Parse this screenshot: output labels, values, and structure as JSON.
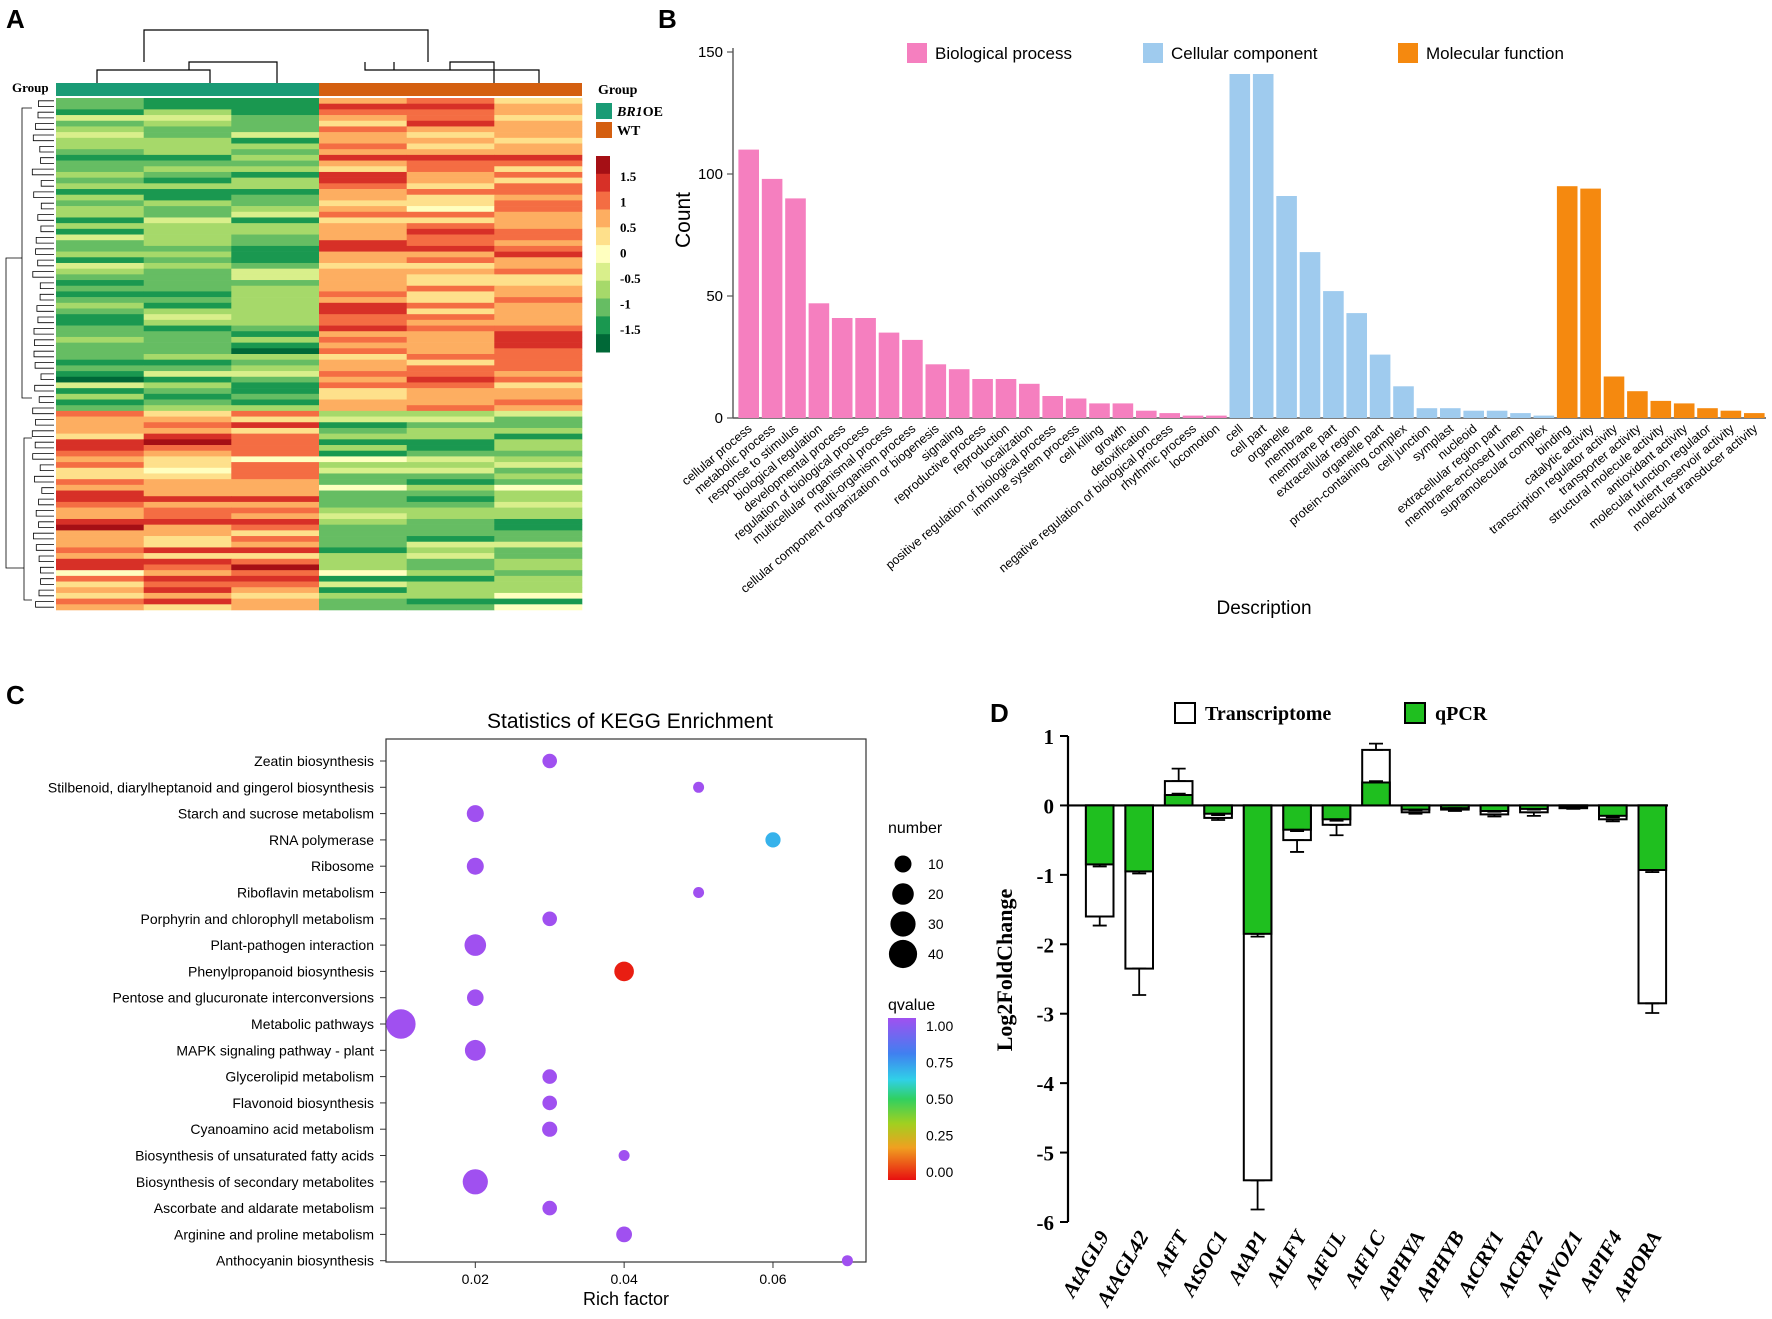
{
  "panels": {
    "a": "A",
    "b": "B",
    "c": "C",
    "d": "D"
  },
  "colors": {
    "bp": "#f57fbf",
    "cc": "#9fcbee",
    "mf": "#f5890f",
    "green": "#1fbf1f",
    "red": "#e41a1c",
    "teal": "#1a9b75",
    "orange": "#d45f10"
  },
  "heatmap": {
    "group_label": "Group",
    "legend_title": "Group",
    "groups": [
      {
        "label": "BR1",
        "suffix": "OE",
        "color": "#1a9b75",
        "columns": 3
      },
      {
        "label": "WT",
        "suffix": "",
        "color": "#d45f10",
        "columns": 3
      }
    ],
    "scale_ticks": [
      "1.5",
      "1",
      "0.5",
      "0",
      "-0.5",
      "-1",
      "-1.5"
    ],
    "scale_colors": [
      "#a50f15",
      "#d73027",
      "#f46d43",
      "#fdae61",
      "#fee08b",
      "#ffffbf",
      "#d9ef8b",
      "#a6d96a",
      "#66bd63",
      "#1a9850",
      "#006837"
    ],
    "rows_shown": "≈90 genes (clustered)"
  },
  "chart_data": [
    {
      "type": "bar",
      "panel": "B",
      "title": "",
      "xlabel": "Description",
      "ylabel": "Count",
      "ylim": [
        0,
        150
      ],
      "yticks": [
        0,
        50,
        100,
        150
      ],
      "legend": [
        "Biological process",
        "Cellular component",
        "Molecular function"
      ],
      "categories": [
        "cellular process",
        "metabolic process",
        "response to stimulus",
        "biological regulation",
        "developmental process",
        "regulation of biological process",
        "multicellular organismal process",
        "multi-organism process",
        "cellular component organization or biogenesis",
        "signaling",
        "reproductive process",
        "reproduction",
        "localization",
        "positive regulation of biological process",
        "immune system process",
        "cell killing",
        "growth",
        "detoxification",
        "negative regulation of biological process",
        "rhythmic process",
        "locomotion",
        "cell",
        "cell part",
        "organelle",
        "membrane",
        "membrane part",
        "extracellular region",
        "organelle part",
        "protein-containing complex",
        "cell junction",
        "symplast",
        "nucleoid",
        "extracellular region part",
        "membrane-enclosed lumen",
        "supramolecular complex",
        "binding",
        "catalytic activity",
        "transcription regulator activity",
        "transporter activity",
        "structural molecule activity",
        "antioxidant activity",
        "molecular function regulator",
        "nutrient reservoir activity",
        "molecular transducer activity"
      ],
      "values": [
        110,
        98,
        90,
        47,
        41,
        41,
        35,
        32,
        22,
        20,
        16,
        16,
        14,
        9,
        8,
        6,
        6,
        3,
        2,
        1,
        1,
        141,
        141,
        91,
        68,
        52,
        43,
        26,
        13,
        4,
        4,
        3,
        3,
        2,
        1,
        95,
        94,
        17,
        11,
        7,
        6,
        4,
        3,
        2
      ],
      "groups": [
        0,
        0,
        0,
        0,
        0,
        0,
        0,
        0,
        0,
        0,
        0,
        0,
        0,
        0,
        0,
        0,
        0,
        0,
        0,
        0,
        0,
        1,
        1,
        1,
        1,
        1,
        1,
        1,
        1,
        1,
        1,
        1,
        1,
        1,
        1,
        2,
        2,
        2,
        2,
        2,
        2,
        2,
        2,
        2
      ]
    },
    {
      "type": "scatter",
      "panel": "C",
      "title": "Statistics of KEGG Enrichment",
      "xlabel": "Rich factor",
      "ylabel": "",
      "xlim": [
        0.008,
        0.0725
      ],
      "xticks": [
        "0.02",
        "0.04",
        "0.06"
      ],
      "xtick_values": [
        0.02,
        0.04,
        0.06
      ],
      "categories": [
        "Zeatin biosynthesis",
        "Stilbenoid, diarylheptanoid and gingerol biosynthesis",
        "Starch and sucrose metabolism",
        "RNA polymerase",
        "Ribosome",
        "Riboflavin metabolism",
        "Porphyrin and chlorophyll metabolism",
        "Plant-pathogen interaction",
        "Phenylpropanoid biosynthesis",
        "Pentose and glucuronate interconversions",
        "Metabolic pathways",
        "MAPK signaling pathway - plant",
        "Glycerolipid metabolism",
        "Flavonoid biosynthesis",
        "Cyanoamino acid metabolism",
        "Biosynthesis of unsaturated fatty acids",
        "Biosynthesis of secondary metabolites",
        "Ascorbate and aldarate metabolism",
        "Arginine and proline metabolism",
        "Anthocyanin biosynthesis"
      ],
      "x": [
        0.03,
        0.05,
        0.02,
        0.06,
        0.02,
        0.05,
        0.03,
        0.02,
        0.04,
        0.02,
        0.01,
        0.02,
        0.03,
        0.03,
        0.03,
        0.04,
        0.02,
        0.03,
        0.04,
        0.07
      ],
      "number": [
        6,
        2,
        10,
        7,
        10,
        2,
        6,
        20,
        15,
        9,
        45,
        18,
        6,
        6,
        7,
        2,
        30,
        6,
        8,
        2
      ],
      "qvalue": [
        1,
        1,
        1,
        0.68,
        1,
        1,
        1,
        1,
        0.02,
        1,
        1,
        1,
        1,
        1,
        1,
        1,
        1,
        1,
        1,
        1
      ],
      "size_legend": {
        "title": "number",
        "items": [
          "10",
          "20",
          "30",
          "40"
        ]
      },
      "color_legend": {
        "title": "qvalue",
        "ticks": [
          "1.00",
          "0.75",
          "0.50",
          "0.25",
          "0.00"
        ]
      }
    },
    {
      "type": "bar",
      "panel": "D",
      "xlabel": "",
      "ylabel": "Log2FoldChange",
      "ylim": [
        -6,
        1
      ],
      "yticks": [
        "1",
        "0",
        "-1",
        "-2",
        "-3",
        "-4",
        "-5",
        "-6"
      ],
      "legend": [
        "Transcriptome",
        "qPCR"
      ],
      "categories": [
        "AtAGL9",
        "AtAGL42",
        "AtFT",
        "AtSOC1",
        "AtAP1",
        "AtLFY",
        "AtFUL",
        "AtFLC",
        "AtPHYA",
        "AtPHYB",
        "AtCRY1",
        "AtCRY2",
        "AtVOZ1",
        "AtPIF4",
        "AtPORA"
      ],
      "series": [
        {
          "name": "Transcriptome",
          "values": [
            -1.6,
            -2.35,
            0.35,
            -0.18,
            -5.4,
            -0.5,
            -0.28,
            0.8,
            -0.1,
            -0.06,
            -0.13,
            -0.1,
            -0.04,
            -0.2,
            -2.85
          ],
          "errors": [
            0.13,
            0.38,
            0.18,
            0.03,
            0.42,
            0.17,
            0.15,
            0.09,
            0.02,
            0.02,
            0.03,
            0.05,
            0.01,
            0.03,
            0.14
          ]
        },
        {
          "name": "qPCR",
          "values": [
            -0.85,
            -0.95,
            0.15,
            -0.12,
            -1.85,
            -0.35,
            -0.2,
            0.33,
            -0.06,
            -0.04,
            -0.08,
            -0.05,
            -0.02,
            -0.15,
            -0.93
          ],
          "errors": [
            0.03,
            0.03,
            0.02,
            0.02,
            0.04,
            0.02,
            0.02,
            0.02,
            0.01,
            0.01,
            0.01,
            0.01,
            0.01,
            0.02,
            0.03
          ]
        }
      ]
    }
  ]
}
